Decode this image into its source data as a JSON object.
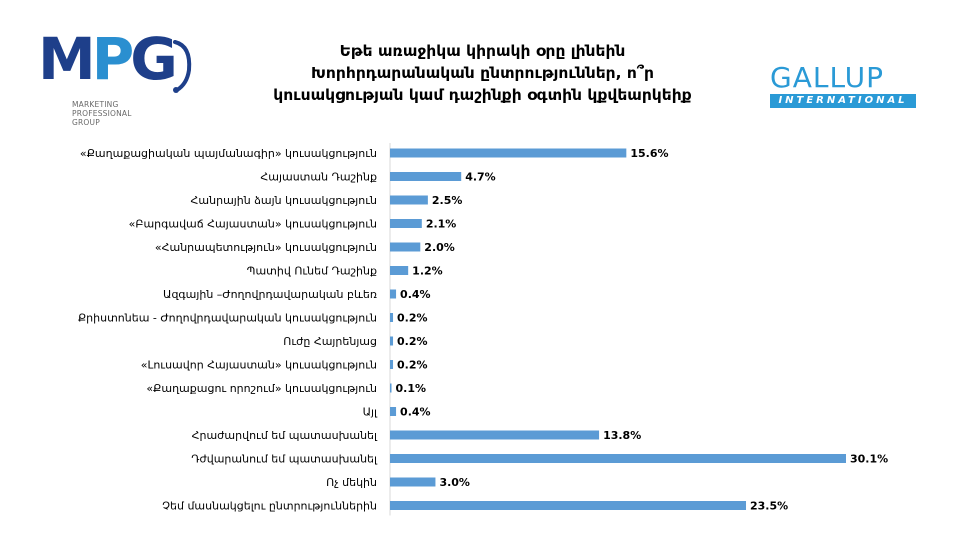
{
  "logos": {
    "mpg": {
      "letters": [
        "M",
        "P",
        "G"
      ],
      "subtitle": [
        "MARKETING",
        "PROFESSIONAL",
        "GROUP"
      ]
    },
    "gallup": {
      "word": "GALLUP",
      "sub": "INTERNATIONAL"
    }
  },
  "colors": {
    "bar": "#5b9bd5",
    "text": "#000000",
    "mpg_dark": "#1e3f8a",
    "mpg_light": "#2a8fd0",
    "gallup": "#2a9ad6"
  },
  "chart_data": {
    "type": "bar",
    "orientation": "horizontal",
    "title": [
      "Եթե առաջիկա կիրակի օրը լինեին",
      "Խորհրդարանական ընտրություններ, ո՞ր",
      "կուսակցության կամ դաշինքի օգտին կքվեարկեիք"
    ],
    "categories": [
      "«Քաղաքացիական պայմանագիր» կուսակցություն",
      "Հայաստան Դաշինք",
      "Հանրային ձայն կուսակցություն",
      "«Բարգավաճ Հայաստան» կուսակցություն",
      "«Հանրապետություն» կուսակցություն",
      "Պատիվ Ունեմ Դաշինք",
      "Ազգային –Ժողովրդավարական բևեռ",
      "Քրիստոնեա - Ժողովրդավարական կուսակցություն",
      "Ուժը Հայրենյաց",
      "«Լուսավոր Հայաստան» կուսակցություն",
      "«Քաղաքացու որոշում» կուսակցություն",
      "Այլ",
      "Հրաժարվում եմ պատասխանել",
      "Դժվարանում եմ պատասխանել",
      "Ոչ մեկին",
      "Չեմ մասնակցելու ընտրություններին"
    ],
    "values": [
      15.6,
      4.7,
      2.5,
      2.1,
      2.0,
      1.2,
      0.4,
      0.2,
      0.2,
      0.2,
      0.1,
      0.4,
      13.8,
      30.1,
      3.0,
      23.5
    ],
    "value_labels": [
      "15.6%",
      "4.7%",
      "2.5%",
      "2.1%",
      "2.0%",
      "1.2%",
      "0.4%",
      "0.2%",
      "0.2%",
      "0.2%",
      "0.1%",
      "0.4%",
      "13.8%",
      "30.1%",
      "3.0%",
      "23.5%"
    ],
    "unit": "%",
    "xlim": [
      0,
      30.1
    ],
    "grid": false,
    "legend": "none"
  }
}
